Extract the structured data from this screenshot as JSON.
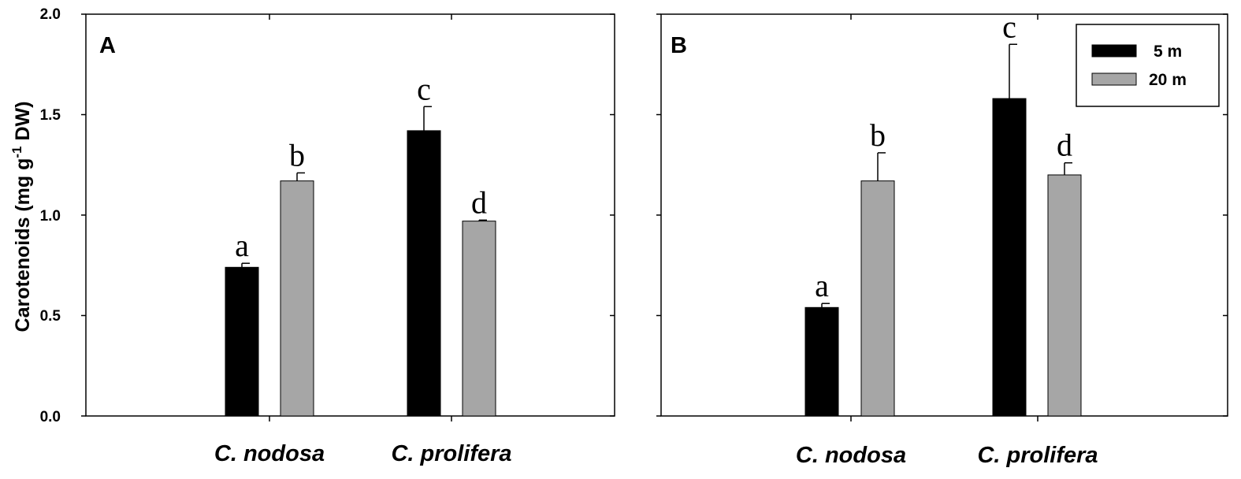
{
  "colors": {
    "s5m": "#000000",
    "s20m": "#a6a6a6"
  },
  "y_axis": {
    "ylabel_main": "Carotenoids (mg g",
    "ylabel_sup": "-1",
    "ylabel_end": " DW)",
    "ticks": [
      "0.0",
      "0.5",
      "1.0",
      "1.5",
      "2.0"
    ]
  },
  "legend": {
    "items": [
      "5 m",
      "20 m"
    ]
  },
  "chart_data": [
    {
      "panel": "A",
      "type": "bar",
      "categories": [
        "C. nodosa",
        "C. prolifera"
      ],
      "series": [
        {
          "name": "5 m",
          "values": [
            0.74,
            1.42
          ],
          "errors": [
            0.02,
            0.12
          ],
          "letters": [
            "a",
            "c"
          ]
        },
        {
          "name": "20 m",
          "values": [
            1.17,
            0.97
          ],
          "errors": [
            0.04,
            0.005
          ],
          "letters": [
            "b",
            "d"
          ]
        }
      ],
      "ylim": [
        0,
        2
      ],
      "yticks": [
        0,
        0.5,
        1.0,
        1.5,
        2.0
      ],
      "legend": "none"
    },
    {
      "panel": "B",
      "type": "bar",
      "categories": [
        "C. nodosa",
        "C. prolifera"
      ],
      "series": [
        {
          "name": "5 m",
          "values": [
            0.54,
            1.58
          ],
          "errors": [
            0.02,
            0.27
          ],
          "letters": [
            "a",
            "c"
          ]
        },
        {
          "name": "20 m",
          "values": [
            1.17,
            1.2
          ],
          "errors": [
            0.14,
            0.06
          ],
          "letters": [
            "b",
            "d"
          ]
        }
      ],
      "ylim": [
        0,
        2
      ],
      "yticks": [
        0,
        0.5,
        1.0,
        1.5,
        2.0
      ],
      "legend": "top-right"
    }
  ]
}
